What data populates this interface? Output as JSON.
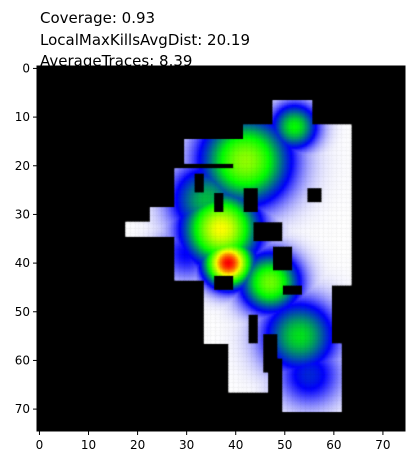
{
  "chart_data": {
    "type": "heatmap",
    "title_lines": [
      "Coverage: 0.93",
      "LocalMaxKillsAvgDist: 20.19",
      "AverageTraces: 8.39"
    ],
    "xlabel": "",
    "ylabel": "",
    "xlim": [
      0,
      74
    ],
    "ylim": [
      74,
      0
    ],
    "grid": false,
    "x_ticks": [
      0,
      10,
      20,
      30,
      40,
      50,
      60,
      70
    ],
    "y_ticks": [
      0,
      10,
      20,
      30,
      40,
      50,
      60,
      70
    ],
    "background_color": "#000000",
    "walkable_color": "#ffffff",
    "colormap": [
      "#ffffff",
      "#0000ff",
      "#00ff00",
      "#ffff00",
      "#ff0000"
    ],
    "walkable_regions": [
      [
        30,
        15,
        42,
        20
      ],
      [
        48,
        7,
        56,
        15
      ],
      [
        42,
        12,
        64,
        21
      ],
      [
        28,
        21,
        46,
        44
      ],
      [
        40,
        20,
        56,
        43
      ],
      [
        54,
        20,
        64,
        45
      ],
      [
        18,
        32,
        30,
        35
      ],
      [
        23,
        29,
        31,
        32
      ],
      [
        34,
        41,
        60,
        57
      ],
      [
        44,
        44,
        58,
        60
      ],
      [
        39,
        53,
        47,
        67
      ],
      [
        50,
        57,
        62,
        71
      ],
      [
        58,
        58,
        62,
        64
      ]
    ],
    "obstacles": [
      [
        32,
        22,
        34,
        26
      ],
      [
        36,
        26,
        38,
        30
      ],
      [
        42,
        25,
        45,
        30
      ],
      [
        44,
        32,
        50,
        36
      ],
      [
        48,
        37,
        52,
        42
      ],
      [
        36,
        43,
        40,
        46
      ],
      [
        50,
        45,
        54,
        47
      ],
      [
        43,
        51,
        45,
        57
      ],
      [
        46,
        55,
        49,
        63
      ],
      [
        55,
        25,
        58,
        28
      ]
    ],
    "hotspots": [
      {
        "x": 38.5,
        "y": 40,
        "intensity": 1.0,
        "spread": 3.2
      },
      {
        "x": 37,
        "y": 33,
        "intensity": 0.75,
        "spread": 5.0
      },
      {
        "x": 42,
        "y": 19,
        "intensity": 0.62,
        "spread": 6.0
      },
      {
        "x": 52,
        "y": 12,
        "intensity": 0.45,
        "spread": 3.2
      },
      {
        "x": 34,
        "y": 27,
        "intensity": 0.38,
        "spread": 5.0
      },
      {
        "x": 47,
        "y": 44,
        "intensity": 0.58,
        "spread": 4.0
      },
      {
        "x": 53,
        "y": 55,
        "intensity": 0.42,
        "spread": 5.0
      },
      {
        "x": 55,
        "y": 63,
        "intensity": 0.22,
        "spread": 4.5
      },
      {
        "x": 30,
        "y": 38,
        "intensity": 0.18,
        "spread": 4.0
      }
    ]
  }
}
